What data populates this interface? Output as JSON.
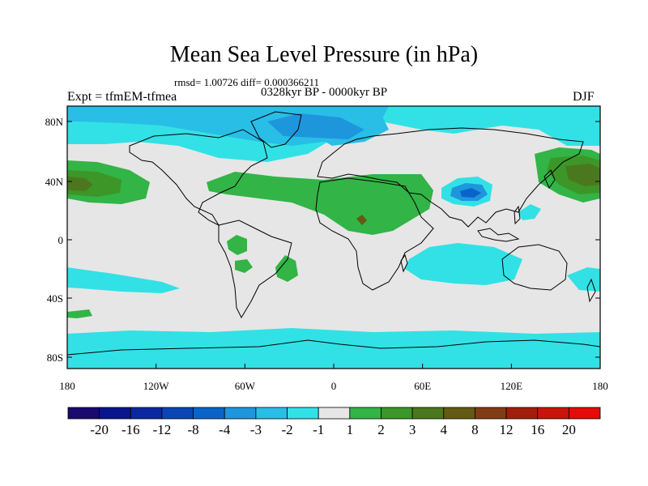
{
  "title": "Mean Sea Level Pressure (in hPa)",
  "stats": "rmsd= 1.00726 diff= 0.000366211",
  "period": "0328kyr BP - 0000kyr BP",
  "experiment": "Expt = tfmEM-tfmea",
  "season": "DJF",
  "lat_ticks": [
    "80N",
    "40N",
    "0",
    "40S",
    "80S"
  ],
  "lon_ticks": [
    "180",
    "120W",
    "60W",
    "0",
    "60E",
    "120E",
    "180"
  ],
  "colorbar": {
    "labels": [
      "-20",
      "-16",
      "-12",
      "-8",
      "-4",
      "-3",
      "-2",
      "-1",
      "1",
      "2",
      "3",
      "4",
      "8",
      "12",
      "16",
      "20"
    ],
    "colors": [
      "#1a0a6e",
      "#0a148c",
      "#0a28a0",
      "#0a46b4",
      "#0a64c8",
      "#1e96dc",
      "#28bee6",
      "#32e1e6",
      "#e6e6e6",
      "#32b446",
      "#3c9628",
      "#4b781e",
      "#645a14",
      "#823c14",
      "#a01e0a",
      "#c8140a",
      "#e60a0a"
    ]
  },
  "colors": {
    "neutral": "#e6e6e6",
    "neg1": "#32e1e6",
    "neg2": "#28bee6",
    "neg3": "#1e96dc",
    "neg4": "#0a64c8",
    "pos1": "#32b446",
    "pos2": "#3c9628",
    "pos3": "#4b781e",
    "pos4": "#645a14"
  }
}
